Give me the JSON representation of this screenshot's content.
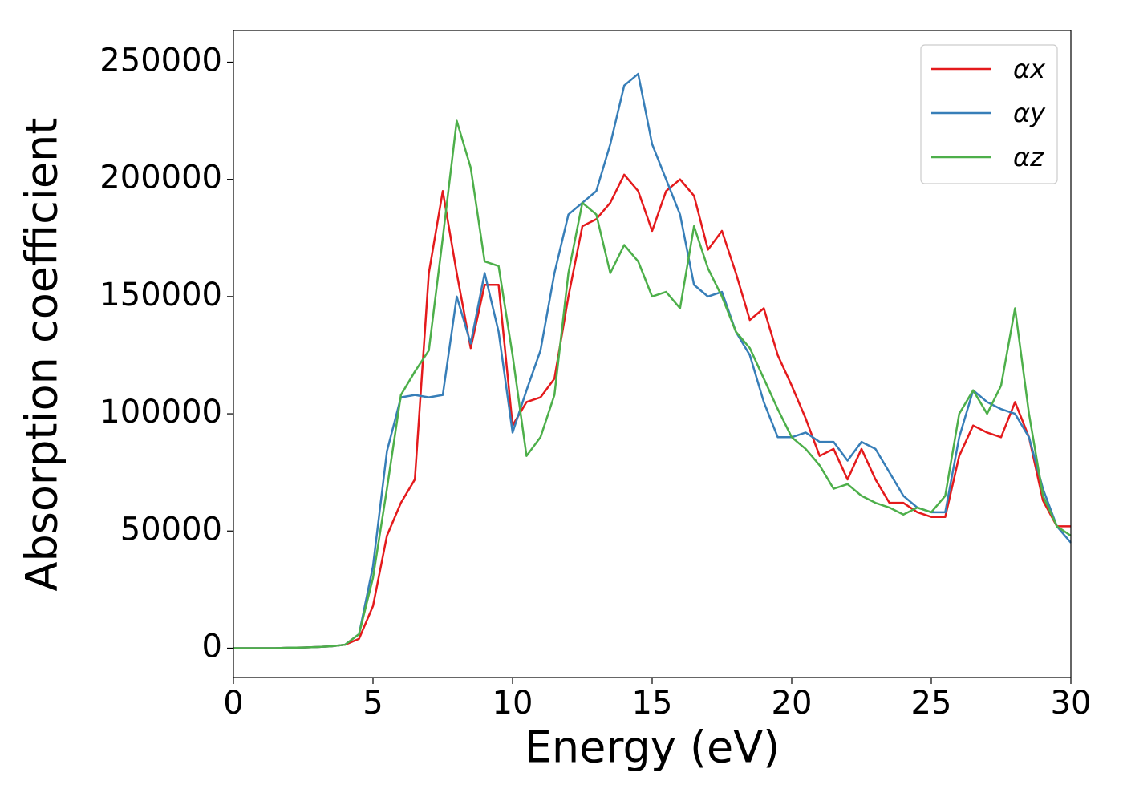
{
  "chart_data": {
    "type": "line",
    "xlabel": "Energy (eV)",
    "ylabel": "Absorption coefficient",
    "x": [
      0,
      0.5,
      1,
      1.5,
      2,
      2.5,
      3,
      3.5,
      4,
      4.5,
      5,
      5.5,
      6,
      6.5,
      7,
      7.5,
      8,
      8.5,
      9,
      9.5,
      10,
      10.5,
      11,
      11.5,
      12,
      12.5,
      13,
      13.5,
      14,
      14.5,
      15,
      15.5,
      16,
      16.5,
      17,
      17.5,
      18,
      18.5,
      19,
      19.5,
      20,
      20.5,
      21,
      21.5,
      22,
      22.5,
      23,
      23.5,
      24,
      24.5,
      25,
      25.5,
      26,
      26.5,
      27,
      27.5,
      28,
      28.5,
      29,
      29.5,
      30
    ],
    "series": [
      {
        "name": "αx",
        "color": "#e41a1c",
        "values": [
          0,
          0,
          0,
          0,
          200,
          300,
          500,
          800,
          1500,
          4000,
          18000,
          48000,
          62000,
          72000,
          160000,
          195000,
          160000,
          128000,
          155000,
          155000,
          95000,
          105000,
          107000,
          115000,
          150000,
          180000,
          183000,
          190000,
          202000,
          195000,
          178000,
          195000,
          200000,
          193000,
          170000,
          178000,
          160000,
          140000,
          145000,
          125000,
          112000,
          98000,
          82000,
          85000,
          72000,
          85000,
          72000,
          62000,
          62000,
          58000,
          56000,
          56000,
          82000,
          95000,
          92000,
          90000,
          105000,
          90000,
          63000,
          52000,
          52000
        ]
      },
      {
        "name": "αy",
        "color": "#377eb8",
        "values": [
          0,
          0,
          0,
          0,
          200,
          300,
          500,
          800,
          1500,
          6000,
          35000,
          84000,
          107000,
          108000,
          107000,
          108000,
          150000,
          130000,
          160000,
          135000,
          92000,
          110000,
          127000,
          160000,
          185000,
          190000,
          195000,
          215000,
          240000,
          245000,
          215000,
          200000,
          185000,
          155000,
          150000,
          152000,
          135000,
          125000,
          105000,
          90000,
          90000,
          92000,
          88000,
          88000,
          80000,
          88000,
          85000,
          75000,
          65000,
          60000,
          58000,
          58000,
          90000,
          110000,
          105000,
          102000,
          100000,
          90000,
          68000,
          52000,
          45000
        ]
      },
      {
        "name": "αz",
        "color": "#4daf4a",
        "values": [
          0,
          0,
          0,
          0,
          200,
          300,
          500,
          800,
          1500,
          6000,
          30000,
          68000,
          108000,
          118000,
          127000,
          175000,
          225000,
          205000,
          165000,
          163000,
          125000,
          82000,
          90000,
          108000,
          160000,
          190000,
          185000,
          160000,
          172000,
          165000,
          150000,
          152000,
          145000,
          180000,
          162000,
          150000,
          135000,
          128000,
          115000,
          102000,
          90000,
          85000,
          78000,
          68000,
          70000,
          65000,
          62000,
          60000,
          57000,
          60000,
          58000,
          65000,
          100000,
          110000,
          100000,
          112000,
          145000,
          100000,
          65000,
          52000,
          48000
        ]
      }
    ],
    "xlim": [
      0,
      30
    ],
    "xticks": [
      0,
      5,
      10,
      15,
      20,
      25,
      30
    ],
    "ylim": [
      -12500,
      263500
    ],
    "yticks": [
      0,
      50000,
      100000,
      150000,
      200000,
      250000
    ],
    "legend": "upper right"
  }
}
